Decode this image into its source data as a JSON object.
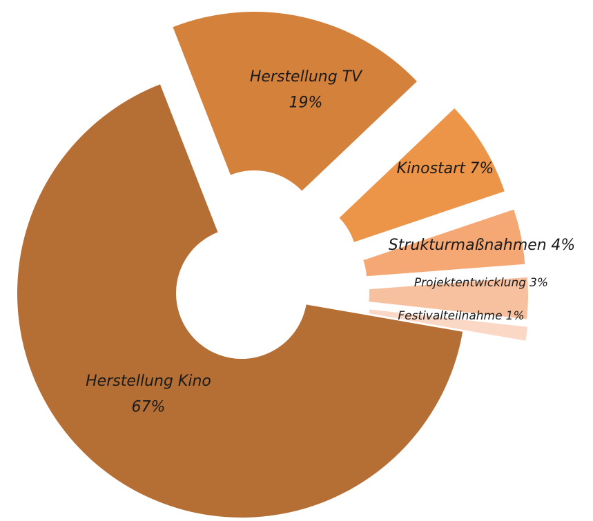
{
  "chart_data": {
    "type": "pie",
    "categories": [
      "Herstellung Kino",
      "Herstellung TV",
      "Kinostart",
      "Strukturmaßnahmen",
      "Projektentwicklung",
      "Festivalteilnahme"
    ],
    "values": [
      67,
      19,
      7,
      4,
      3,
      1
    ],
    "value_labels": [
      "67%",
      "19%",
      "7%",
      "4%",
      "3%",
      "1%"
    ],
    "colors": [
      "#b56f35",
      "#d4813c",
      "#ec9448",
      "#f5a874",
      "#f7c09f",
      "#fad8c5"
    ]
  }
}
